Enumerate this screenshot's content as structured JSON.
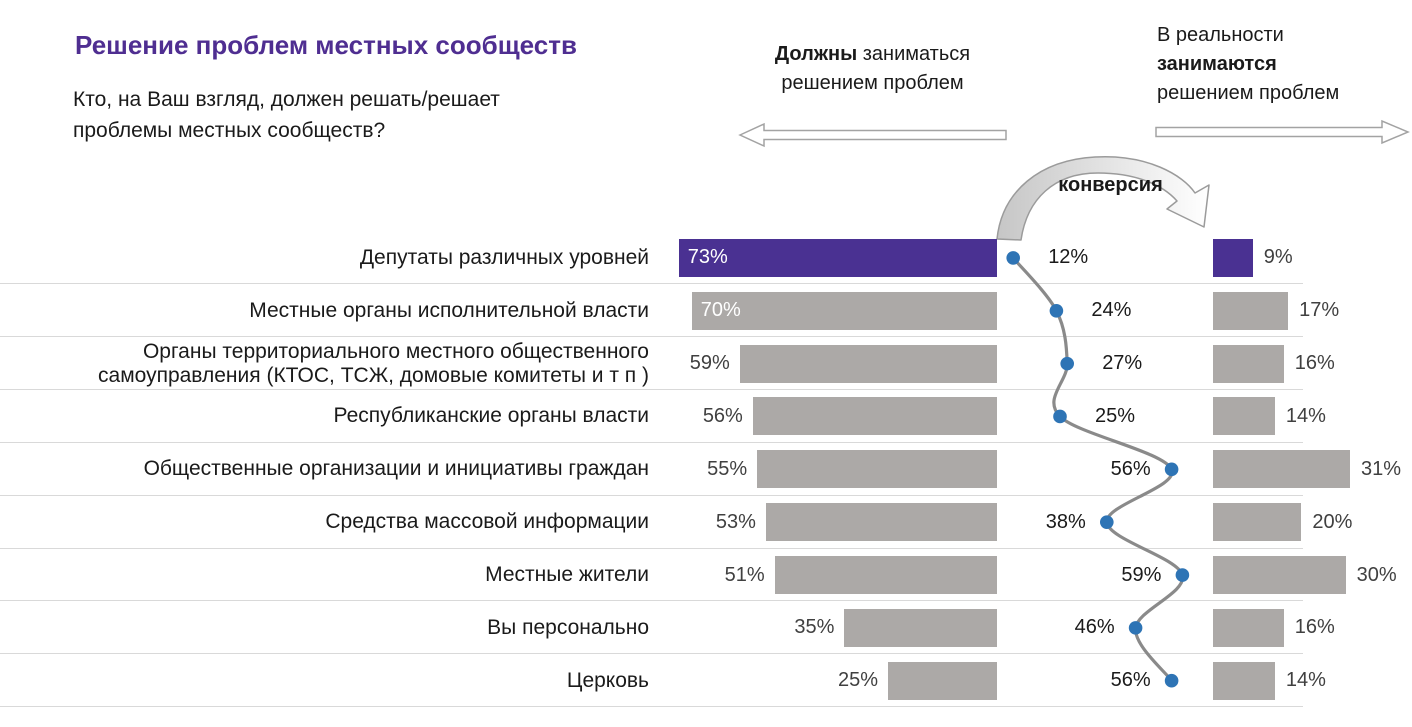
{
  "title": "Решение проблем местных сообществ",
  "subtitle_lines": "Кто, на Ваш взгляд, должен решать/решает\nпроблемы местных сообществ?",
  "left_header": {
    "bold": "Должны",
    "after_bold": " заниматься",
    "line2": "решением проблем"
  },
  "right_header": {
    "line1": "В реальности",
    "bold": "занимаются",
    "line3": "решением проблем"
  },
  "conversion_arrow_label": "конверсия",
  "colors": {
    "title_text": "#4F2E91",
    "highlight_bar": "#4A3192",
    "bar": "#ACA9A7",
    "dot": "#2E74B5",
    "curve": "#8A8A8A",
    "separator": "#D9D9D9",
    "value_text": "#404040",
    "value_text_inside": "#FFFFFF"
  },
  "chart_data": {
    "type": "bar",
    "orientation": "horizontal-mirrored",
    "legend_position": "top",
    "grid": "row-separators",
    "categories": [
      "Депутаты различных уровней",
      "Местные органы исполнительной власти",
      "Органы территориального местного общественного\nсамоуправления (КТОС, ТСЖ, домовые комитеты и т п )",
      "Республиканские органы власти",
      "Общественные организации и инициативы граждан",
      "Средства массовой информации",
      "Местные жители",
      "Вы персонально",
      "Церковь"
    ],
    "series": [
      {
        "name": "Должны заниматься решением проблем",
        "type": "bar",
        "unit": "%",
        "values": [
          73,
          70,
          59,
          56,
          55,
          53,
          51,
          35,
          25
        ]
      },
      {
        "name": "В реальности занимаются решением проблем",
        "type": "bar",
        "unit": "%",
        "values": [
          9,
          17,
          16,
          14,
          31,
          20,
          30,
          16,
          14
        ]
      },
      {
        "name": "конверсия",
        "type": "line",
        "unit": "%",
        "values": [
          12,
          24,
          27,
          25,
          56,
          38,
          59,
          46,
          56
        ]
      }
    ],
    "highlight_row": 0,
    "value_suffix": "%",
    "xlim_left_chart": [
      0,
      100
    ],
    "xlim_right_chart": [
      0,
      100
    ]
  }
}
